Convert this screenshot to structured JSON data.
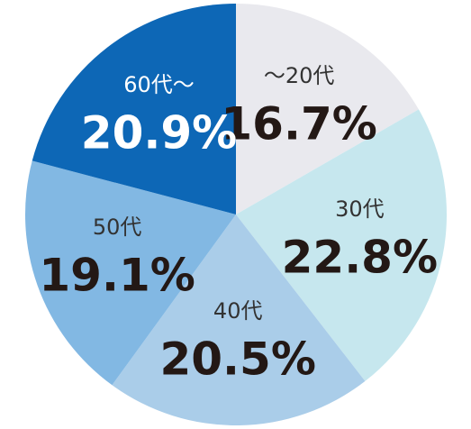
{
  "chart_data": {
    "type": "pie",
    "categories": [
      "〜20代",
      "30代",
      "40代",
      "50代",
      "60代〜"
    ],
    "values": [
      16.7,
      22.8,
      20.5,
      19.1,
      20.9
    ],
    "value_labels": [
      "16.7%",
      "22.8%",
      "20.5%",
      "19.1%",
      "20.9%"
    ],
    "colors": [
      "#e9e9ee",
      "#c6e7ee",
      "#aacde9",
      "#82b8e3",
      "#0d67b6"
    ]
  }
}
